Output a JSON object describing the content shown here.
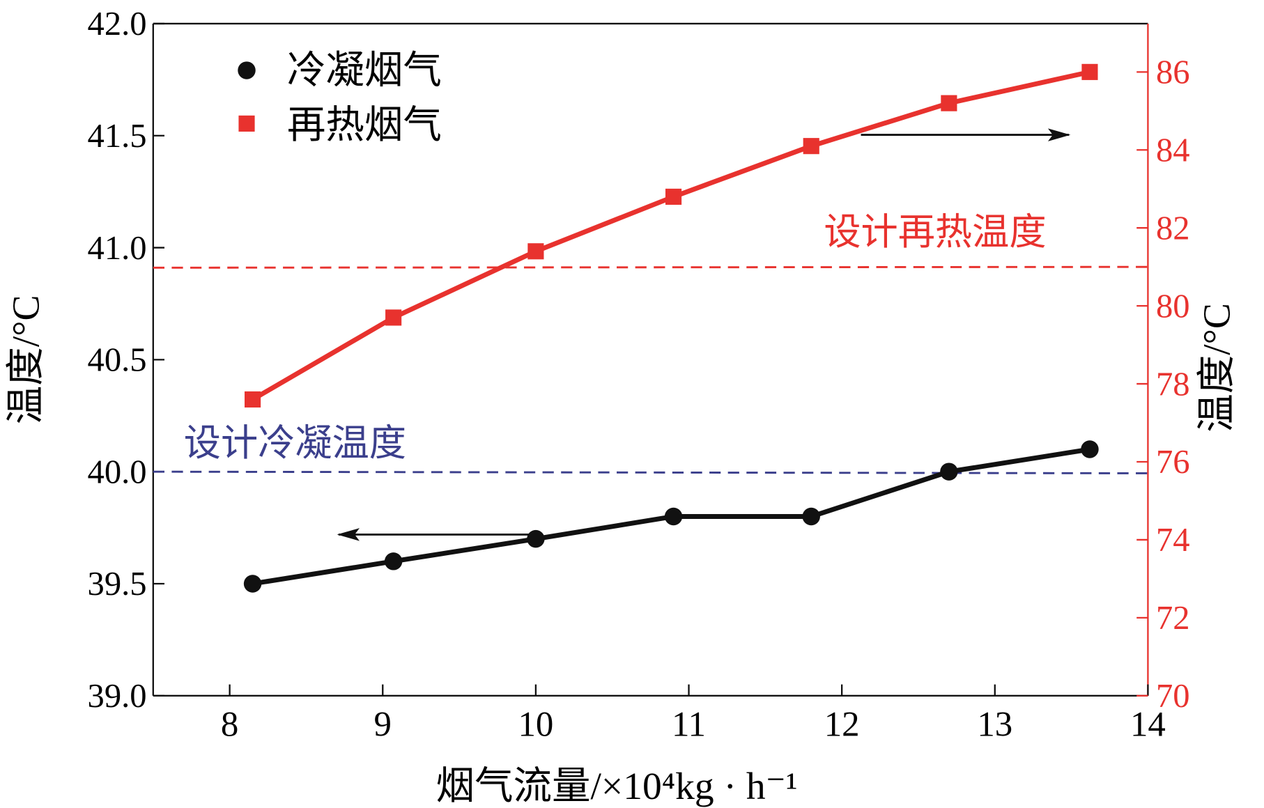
{
  "chart_data": {
    "type": "line",
    "xlabel": "烟气流量/×10⁴kg · h⁻¹",
    "ylabel_left": "温度/°C",
    "ylabel_right": "温度/°C",
    "xlim": [
      7.5,
      14
    ],
    "ylim_left": [
      39.0,
      42.0
    ],
    "ylim_right": [
      70,
      87.24
    ],
    "x_ticks": [
      8,
      9,
      10,
      11,
      12,
      13,
      14
    ],
    "x_tick_labels": [
      "8",
      "9",
      "10",
      "11",
      "12",
      "13",
      "14"
    ],
    "y_left_ticks": [
      39.0,
      39.5,
      40.0,
      40.5,
      41.0,
      41.5,
      42.0
    ],
    "y_left_tick_labels": [
      "39.0",
      "39.5",
      "40.0",
      "40.5",
      "41.0",
      "41.5",
      "42.0"
    ],
    "y_right_ticks": [
      70,
      72,
      74,
      76,
      78,
      80,
      82,
      84,
      86
    ],
    "y_right_tick_labels": [
      "70",
      "72",
      "74",
      "76",
      "78",
      "80",
      "82",
      "84",
      "86"
    ],
    "grid": false,
    "legend_placement": "top-left",
    "colors": {
      "condensed": "#111111",
      "reheated": "#e8322e",
      "design_condense": "#3b3f8c",
      "design_reheat": "#e8322e",
      "right_axis": "#e8322e"
    },
    "series": [
      {
        "name": "冷凝烟气",
        "axis": "left",
        "marker": "circle",
        "x": [
          8.15,
          9.07,
          10.0,
          10.9,
          11.8,
          12.7,
          13.62
        ],
        "y": [
          39.5,
          39.6,
          39.7,
          39.8,
          39.8,
          40.0,
          40.1
        ]
      },
      {
        "name": "再热烟气",
        "axis": "right",
        "marker": "square",
        "x": [
          8.15,
          9.07,
          10.0,
          10.9,
          11.8,
          12.7,
          13.62
        ],
        "y": [
          77.6,
          79.7,
          81.4,
          82.8,
          84.1,
          85.2,
          86.0
        ]
      }
    ],
    "reference_lines": [
      {
        "label": "设计冷凝温度",
        "axis": "left",
        "y": 40.0
      },
      {
        "label": "设计再热温度",
        "axis": "right",
        "y": 81.0
      }
    ]
  }
}
